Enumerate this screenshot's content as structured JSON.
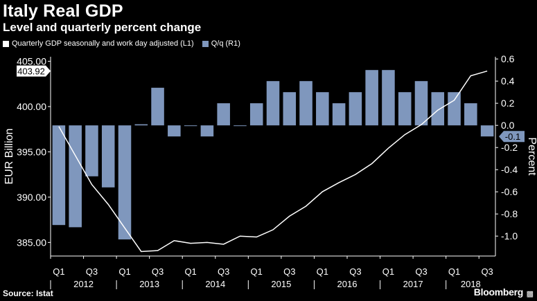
{
  "title": "Italy Real GDP",
  "subtitle": "Level and quarterly percent change",
  "source": "Source: Istat",
  "brand": "Bloomberg",
  "colors": {
    "background": "#000000",
    "bar": "#7f97bd",
    "line": "#ffffff",
    "axis": "#ffffff",
    "last_value_bg": "#ffffff",
    "last_value_text": "#000000",
    "last_bar_label_bg": "#7f97bd"
  },
  "chart_data": {
    "type": "bar+line",
    "legend": [
      {
        "label": "Quarterly GDP seasonally and work day adjusted (L1)",
        "kind": "line"
      },
      {
        "label": "Q/q (R1)",
        "kind": "bar"
      }
    ],
    "left_axis": {
      "label": "EUR Billion",
      "ylim": [
        383.5,
        405.5
      ],
      "ticks": [
        385,
        390,
        395,
        400,
        405
      ],
      "tick_labels": [
        "385.00",
        "390.00",
        "395.00",
        "400.00",
        "405.00"
      ]
    },
    "right_axis": {
      "label": "Percent",
      "ylim": [
        -1.18,
        0.62
      ],
      "ticks": [
        0.6,
        0.4,
        0.2,
        0.0,
        -0.2,
        -0.4,
        -0.6,
        -0.8,
        -1.0
      ],
      "tick_labels": [
        "0.6",
        "0.4",
        "0.2",
        "0.0",
        "-0.2",
        "-0.4",
        "-0.6",
        "-0.8",
        "-1.0"
      ]
    },
    "x_quarter_labels": [
      "Q1",
      "Q3",
      "Q1",
      "Q3",
      "Q1",
      "Q3",
      "Q1",
      "Q3",
      "Q1",
      "Q3",
      "Q1",
      "Q3",
      "Q1",
      "Q3"
    ],
    "x_year_labels": [
      "2012",
      "2013",
      "2014",
      "2015",
      "2016",
      "2017",
      "2018"
    ],
    "quarters": [
      "2012Q1",
      "2012Q2",
      "2012Q3",
      "2012Q4",
      "2013Q1",
      "2013Q2",
      "2013Q3",
      "2013Q4",
      "2014Q1",
      "2014Q2",
      "2014Q3",
      "2014Q4",
      "2015Q1",
      "2015Q2",
      "2015Q3",
      "2015Q4",
      "2016Q1",
      "2016Q2",
      "2016Q3",
      "2016Q4",
      "2017Q1",
      "2017Q2",
      "2017Q3",
      "2017Q4",
      "2018Q1",
      "2018Q2",
      "2018Q3"
    ],
    "series": [
      {
        "name": "Quarterly GDP seasonally and work day adjusted (L1)",
        "type": "line",
        "axis": "left",
        "values": [
          397.8,
          394.6,
          391.4,
          389.2,
          386.6,
          384.0,
          384.1,
          385.2,
          384.9,
          385.0,
          384.8,
          385.7,
          385.6,
          386.4,
          387.9,
          389.0,
          390.6,
          391.6,
          392.5,
          393.7,
          395.4,
          396.9,
          398.0,
          399.6,
          400.7,
          403.4,
          403.92
        ]
      },
      {
        "name": "Q/q (R1)",
        "type": "bar",
        "axis": "right",
        "values": [
          -0.9,
          -0.92,
          -0.46,
          -0.56,
          -1.03,
          0.01,
          0.34,
          -0.1,
          0.0,
          -0.1,
          0.2,
          0.0,
          0.2,
          0.4,
          0.3,
          0.4,
          0.3,
          0.2,
          0.3,
          0.5,
          0.5,
          0.3,
          0.4,
          0.3,
          0.3,
          0.2,
          -0.1
        ]
      }
    ],
    "last_value_left": "403.92",
    "last_value_right": "-0.1",
    "grid": false
  }
}
